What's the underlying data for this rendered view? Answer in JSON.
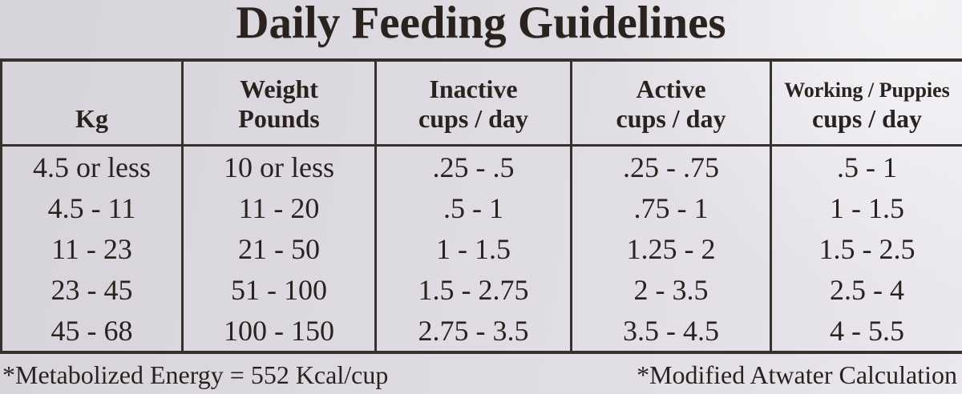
{
  "title": "Daily Feeding Guidelines",
  "table": {
    "columns": [
      {
        "id": "kg",
        "label_lines": [
          "Kg"
        ]
      },
      {
        "id": "pounds",
        "label_lines": [
          "Weight",
          "Pounds"
        ]
      },
      {
        "id": "inactive",
        "label_lines": [
          "Inactive",
          "cups / day"
        ]
      },
      {
        "id": "active",
        "label_lines": [
          "Active",
          "cups / day"
        ]
      },
      {
        "id": "working",
        "label_lines": [
          "Working / Puppies",
          "cups / day"
        ]
      }
    ],
    "rows": [
      [
        "4.5 or less",
        "10 or less",
        ".25 - .5",
        ".25 - .75",
        ".5 - 1"
      ],
      [
        "4.5 - 11",
        "11 - 20",
        ".5 - 1",
        ".75 - 1",
        "1 - 1.5"
      ],
      [
        "11 - 23",
        "21 - 50",
        "1 - 1.5",
        "1.25 - 2",
        "1.5 - 2.5"
      ],
      [
        "23 - 45",
        "51 - 100",
        "1.5 - 2.75",
        "2 - 3.5",
        "2.5 - 4"
      ],
      [
        "45 - 68",
        "100 - 150",
        "2.75 - 3.5",
        "3.5 - 4.5",
        "4 - 5.5"
      ]
    ]
  },
  "footnotes": {
    "left": "*Metabolized Energy = 552 Kcal/cup",
    "right": "*Modified Atwater Calculation"
  },
  "colors": {
    "background": "#dddbe1",
    "text": "#2b2220",
    "border": "#37302d"
  }
}
